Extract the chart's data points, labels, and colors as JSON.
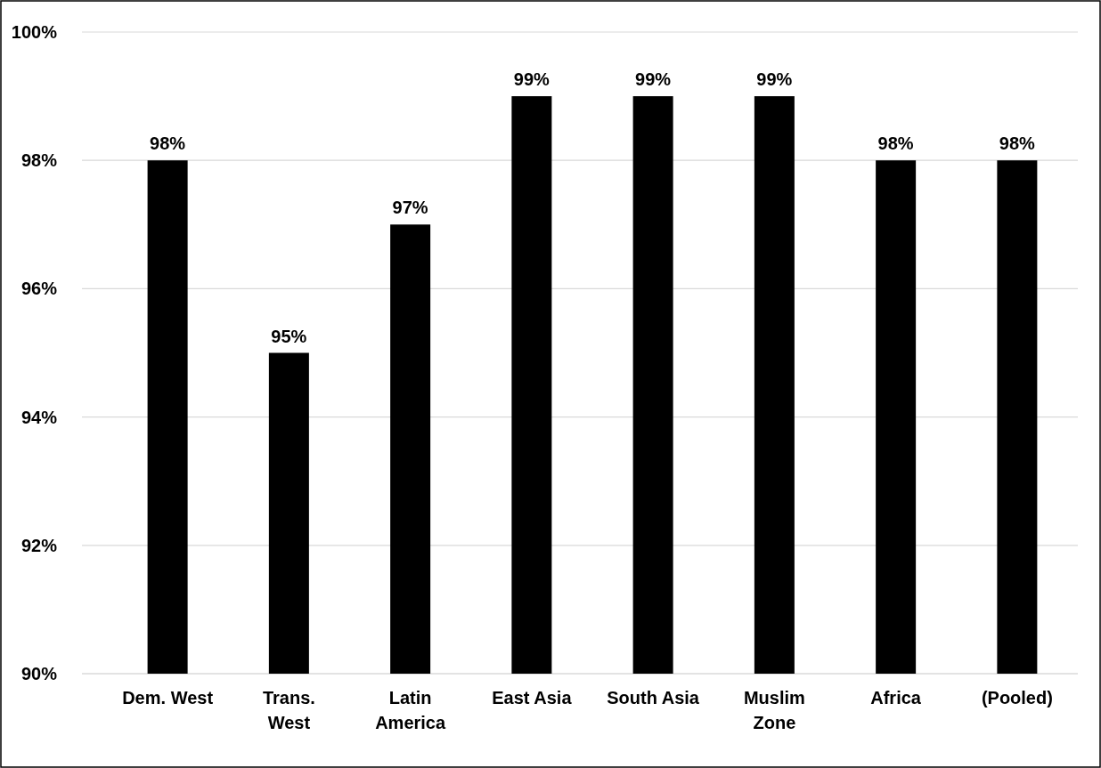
{
  "chart_data": {
    "type": "bar",
    "categories": [
      "Dem. West",
      "Trans.\nWest",
      "Latin\nAmerica",
      "East Asia",
      "South Asia",
      "Muslim\nZone",
      "Africa",
      "(Pooled)"
    ],
    "values": [
      98,
      95,
      97,
      99,
      99,
      99,
      98,
      98
    ],
    "value_labels": [
      "98%",
      "95%",
      "97%",
      "99%",
      "99%",
      "99%",
      "98%",
      "98%"
    ],
    "color": "#000000",
    "ylim": [
      90,
      100
    ],
    "yticks": [
      {
        "value": 90,
        "label": "90%"
      },
      {
        "value": 92,
        "label": "92%"
      },
      {
        "value": 94,
        "label": "94%"
      },
      {
        "value": 96,
        "label": "96%"
      },
      {
        "value": 98,
        "label": "98%"
      },
      {
        "value": 100,
        "label": "100%"
      }
    ],
    "grid": "y"
  }
}
